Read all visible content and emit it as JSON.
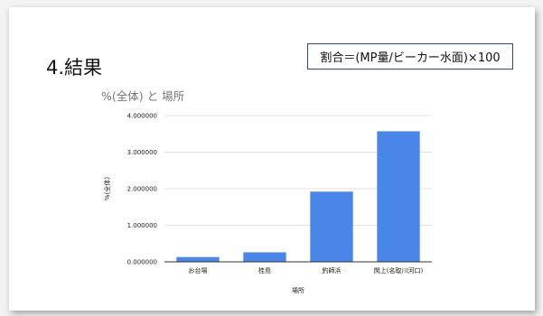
{
  "slide": {
    "title": "4.結果",
    "formula": "割合＝(MP量/ビーカー水面)×100"
  },
  "chart_data": {
    "type": "bar",
    "title": "%(全体) と 場所",
    "xlabel": "場所",
    "ylabel": "%(全体)",
    "categories": [
      "お台場",
      "桂島",
      "釣師浜",
      "閖上(名取川河口)"
    ],
    "values": [
      0.13,
      0.26,
      1.92,
      3.57
    ],
    "ylim": [
      0,
      4
    ],
    "yticks": [
      "0.000000",
      "1.000000",
      "2.000000",
      "3.000000",
      "4.000000"
    ],
    "grid": true,
    "bar_color": "#4a86e8"
  }
}
